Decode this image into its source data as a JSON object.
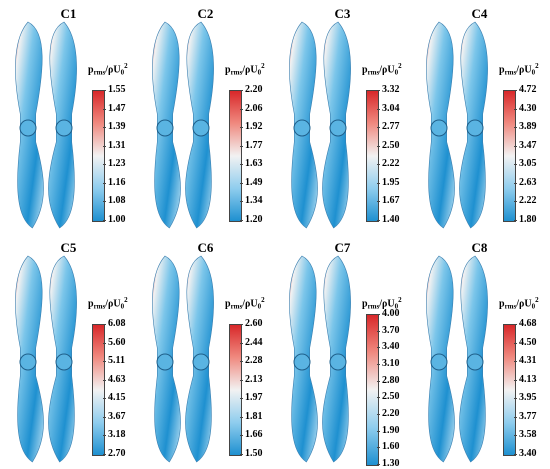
{
  "legend_title": {
    "main": "p",
    "sub": "rms",
    "over": "/ρU",
    "sub0": "0",
    "sup": "2"
  },
  "colors": {
    "low": "#1e90d0",
    "mid": "#f2f2f2",
    "high": "#d8282a"
  },
  "panels": [
    {
      "title": "C1",
      "ticks": [
        "1.55",
        "1.47",
        "1.39",
        "1.31",
        "1.23",
        "1.16",
        "1.08",
        "1.00"
      ]
    },
    {
      "title": "C2",
      "ticks": [
        "2.20",
        "2.06",
        "1.92",
        "1.77",
        "1.63",
        "1.49",
        "1.34",
        "1.20"
      ]
    },
    {
      "title": "C3",
      "ticks": [
        "3.32",
        "3.04",
        "2.77",
        "2.50",
        "2.22",
        "1.95",
        "1.67",
        "1.40"
      ]
    },
    {
      "title": "C4",
      "ticks": [
        "4.72",
        "4.30",
        "3.89",
        "3.47",
        "3.05",
        "2.63",
        "2.22",
        "1.80"
      ]
    },
    {
      "title": "C5",
      "ticks": [
        "6.08",
        "5.60",
        "5.11",
        "4.63",
        "4.15",
        "3.67",
        "3.18",
        "2.70"
      ]
    },
    {
      "title": "C6",
      "ticks": [
        "2.60",
        "2.44",
        "2.28",
        "2.13",
        "1.97",
        "1.81",
        "1.66",
        "1.50"
      ]
    },
    {
      "title": "C7",
      "ticks": [
        "4.00",
        "3.70",
        "3.40",
        "3.10",
        "2.80",
        "2.50",
        "2.20",
        "1.90",
        "1.60",
        "1.30"
      ]
    },
    {
      "title": "C8",
      "ticks": [
        "4.68",
        "4.50",
        "4.31",
        "4.13",
        "3.95",
        "3.77",
        "3.58",
        "3.40"
      ]
    }
  ]
}
